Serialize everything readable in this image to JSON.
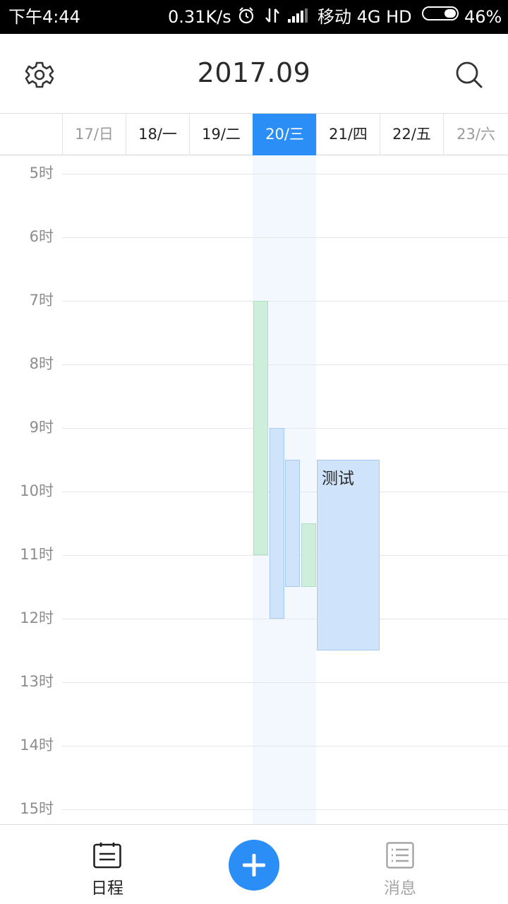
{
  "status_bar": {
    "time": "下午4:44",
    "net_speed": "0.31K/s",
    "carrier": "移动 4G HD",
    "battery_percent": "46%",
    "icons": [
      "alarm-icon",
      "data-transfer-icon",
      "signal-icon",
      "battery-icon"
    ]
  },
  "header": {
    "title": "2017.09",
    "left_icon": "gear-icon",
    "right_icon": "search-icon"
  },
  "week": {
    "days": [
      {
        "label": "17/日",
        "state": "dim"
      },
      {
        "label": "18/一",
        "state": "normal"
      },
      {
        "label": "19/二",
        "state": "normal"
      },
      {
        "label": "20/三",
        "state": "selected"
      },
      {
        "label": "21/四",
        "state": "normal"
      },
      {
        "label": "22/五",
        "state": "normal"
      },
      {
        "label": "23/六",
        "state": "dim"
      }
    ]
  },
  "timeline": {
    "hours": [
      "5时",
      "6时",
      "7时",
      "8时",
      "9时",
      "10时",
      "11时",
      "12时",
      "13时",
      "14时",
      "15时"
    ]
  },
  "events": [
    {
      "day": "20/三",
      "start_hour": 7,
      "end_hour": 11,
      "color": "green",
      "title": ""
    },
    {
      "day": "20/三",
      "start_hour": 9,
      "end_hour": 12,
      "color": "blue",
      "title": ""
    },
    {
      "day": "20/三",
      "start_hour": 9.5,
      "end_hour": 11.5,
      "color": "blue",
      "title": ""
    },
    {
      "day": "20/三",
      "start_hour": 10.5,
      "end_hour": 11.5,
      "color": "green",
      "title": ""
    },
    {
      "day": "21/四",
      "start_hour": 9.5,
      "end_hour": 12.5,
      "color": "blue",
      "title": "测试"
    }
  ],
  "colors": {
    "accent": "#2b8ef7",
    "event_green": "#cdeedb",
    "event_blue": "#cfe3fb",
    "today_column": "#f3f7fe"
  },
  "bottom_nav": {
    "schedule_label": "日程",
    "messages_label": "消息",
    "schedule_icon": "calendar-icon",
    "messages_icon": "message-list-icon",
    "add_icon": "plus-icon"
  }
}
